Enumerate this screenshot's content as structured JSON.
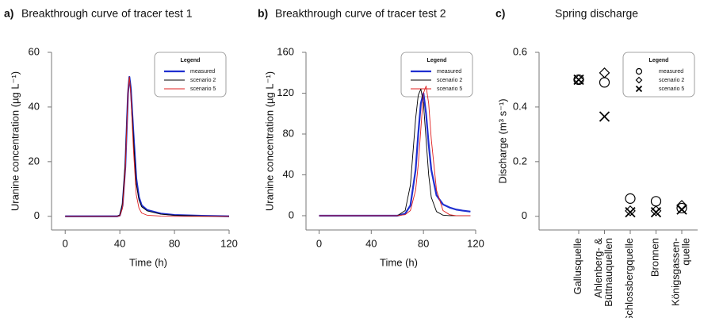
{
  "chart_data": [
    {
      "type": "line",
      "panel_label": "a)",
      "title": "Breakthrough curve of tracer test 1",
      "xlabel": "Time (h)",
      "ylabel": "Uranine concentration (µg L⁻¹)",
      "x": [
        0,
        20,
        38,
        40,
        42,
        44,
        46,
        47,
        48,
        50,
        52,
        54,
        56,
        60,
        70,
        80,
        100,
        120
      ],
      "series": [
        {
          "name": "measured",
          "color": "#1f2fd0",
          "width": 2.2,
          "values": [
            0,
            0,
            0,
            0.3,
            4,
            18,
            45,
            51,
            47,
            30,
            14,
            7,
            4,
            2.3,
            1,
            0.5,
            0.2,
            0
          ]
        },
        {
          "name": "scenario 2",
          "color": "#000000",
          "width": 0.9,
          "values": [
            0,
            0,
            0,
            0.5,
            5,
            20,
            46,
            51,
            46,
            28,
            12,
            6,
            3.5,
            2,
            0.8,
            0.4,
            0.1,
            0
          ]
        },
        {
          "name": "scenario 5",
          "color": "#e02020",
          "width": 0.9,
          "values": [
            0,
            0,
            0,
            0.2,
            3,
            17,
            45,
            51,
            45,
            24,
            8,
            3,
            1.2,
            0.4,
            0.1,
            0,
            0,
            0
          ]
        }
      ],
      "xlim": [
        -10,
        120
      ],
      "ylim": [
        -5,
        60
      ],
      "xticks": [
        0,
        40,
        80,
        120
      ],
      "yticks": [
        0,
        20,
        40,
        60
      ],
      "legend_title": "Legend",
      "legend": "upper right"
    },
    {
      "type": "line",
      "panel_label": "b)",
      "title": "Breakthrough curve of tracer test 2",
      "xlabel": "Time (h)",
      "ylabel": "Uranine concentration (µg L⁻¹)",
      "x": [
        0,
        60,
        66,
        70,
        74,
        76,
        78,
        80,
        82,
        84,
        86,
        90,
        95,
        100,
        105,
        110,
        116
      ],
      "series": [
        {
          "name": "measured",
          "color": "#1f2fd0",
          "width": 2.2,
          "values": [
            0,
            0,
            2,
            10,
            45,
            80,
            110,
            120,
            100,
            70,
            45,
            20,
            11,
            8,
            6,
            5,
            4
          ]
        },
        {
          "name": "scenario 2",
          "color": "#000000",
          "width": 0.9,
          "values": [
            0,
            0,
            5,
            30,
            95,
            118,
            124,
            110,
            75,
            40,
            18,
            4,
            0.5,
            0,
            0,
            0,
            0
          ]
        },
        {
          "name": "scenario 5",
          "color": "#e02020",
          "width": 0.9,
          "values": [
            0,
            0,
            1,
            5,
            25,
            50,
            85,
            120,
            127,
            110,
            75,
            25,
            5,
            1,
            0,
            0,
            0
          ]
        }
      ],
      "xlim": [
        -10,
        120
      ],
      "ylim": [
        -14,
        160
      ],
      "xticks": [
        0,
        40,
        80,
        120
      ],
      "yticks": [
        0,
        40,
        80,
        120,
        160
      ],
      "legend_title": "Legend",
      "legend": "upper right"
    },
    {
      "type": "scatter",
      "panel_label": "c)",
      "title": "Spring discharge",
      "ylabel": "Discharge (m³ s⁻¹)",
      "categories": [
        [
          "Gallusquelle"
        ],
        [
          "Ahlenberg- &",
          "Büttnauquellen"
        ],
        [
          "Schlossbergquelle"
        ],
        [
          "Bronnen"
        ],
        [
          "Königsgassen-",
          "quelle"
        ]
      ],
      "series": [
        {
          "name": "measured",
          "marker": "circle",
          "color": "#000000",
          "values": [
            0.5,
            0.49,
            0.065,
            0.055,
            0.03
          ]
        },
        {
          "name": "scenario 2",
          "marker": "diamond",
          "color": "#000000",
          "values": [
            0.5,
            0.525,
            0.02,
            0.02,
            0.04
          ]
        },
        {
          "name": "scenario 5",
          "marker": "x",
          "color": "#000000",
          "values": [
            0.5,
            0.365,
            0.015,
            0.015,
            0.025
          ]
        }
      ],
      "ylim": [
        -0.05,
        0.6
      ],
      "yticks": [
        0,
        0.2,
        0.4,
        0.6
      ],
      "legend_title": "Legend",
      "legend": "upper right"
    }
  ]
}
